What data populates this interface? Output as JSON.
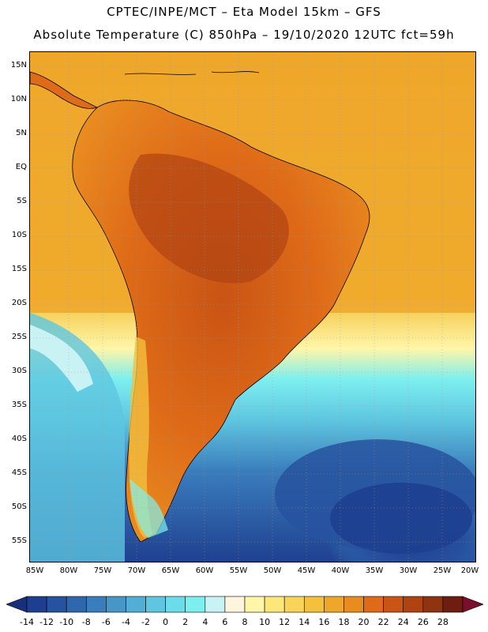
{
  "title": {
    "line1": "CPTEC/INPE/MCT –  Eta Model 15km – GFS",
    "line2": "Absolute Temperature (C) 850hPa – 19/10/2020 12UTC fct=59h"
  },
  "map": {
    "lat_labels": [
      "15N",
      "10N",
      "5N",
      "EQ",
      "5S",
      "10S",
      "15S",
      "20S",
      "25S",
      "30S",
      "35S",
      "40S",
      "45S",
      "50S",
      "55S"
    ],
    "lon_labels": [
      "85W",
      "80W",
      "75W",
      "70W",
      "65W",
      "60W",
      "55W",
      "50W",
      "45W",
      "40W",
      "35W",
      "30W",
      "25W",
      "20W"
    ],
    "region": "South America"
  },
  "colorbar": {
    "ticks": [
      "-14",
      "-12",
      "-10",
      "-8",
      "-6",
      "-4",
      "-2",
      "0",
      "2",
      "4",
      "6",
      "8",
      "10",
      "12",
      "14",
      "16",
      "18",
      "20",
      "22",
      "24",
      "26",
      "28"
    ],
    "colors": [
      "#1e3f8f",
      "#27529f",
      "#2f67ae",
      "#3a7dbd",
      "#4696c8",
      "#52aed4",
      "#5ec6e0",
      "#6bdcea",
      "#7defef",
      "#c8f2f4",
      "#fff4de",
      "#fff6a8",
      "#fde77b",
      "#f8d558",
      "#f3c13c",
      "#eea72a",
      "#e98c20",
      "#df6b18",
      "#c95414",
      "#b04312",
      "#8e3410",
      "#6e1e10"
    ],
    "under_color": "#1a2f7a",
    "over_color": "#7a0f2a"
  }
}
